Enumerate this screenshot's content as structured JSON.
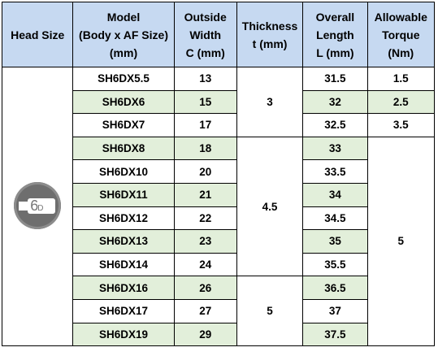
{
  "headers": {
    "head_size": "Head Size",
    "model": [
      "Model",
      "(Body x AF Size)",
      "(mm)"
    ],
    "width": [
      "Outside",
      "Width",
      "C (mm)"
    ],
    "thickness": [
      "Thickness",
      "t (mm)"
    ],
    "length": [
      "Overall",
      "Length",
      "L (mm)"
    ],
    "torque": [
      "Allowable",
      "Torque",
      "(Nm)"
    ]
  },
  "icon": {
    "name": "6d-head-icon",
    "text": "6",
    "subtext": "D"
  },
  "rows": [
    {
      "model": "SH6DX5.5",
      "width": "13",
      "length": "31.5"
    },
    {
      "model": "SH6DX6",
      "width": "15",
      "length": "32"
    },
    {
      "model": "SH6DX7",
      "width": "17",
      "length": "32.5"
    },
    {
      "model": "SH6DX8",
      "width": "18",
      "length": "33"
    },
    {
      "model": "SH6DX10",
      "width": "20",
      "length": "33.5"
    },
    {
      "model": "SH6DX11",
      "width": "21",
      "length": "34"
    },
    {
      "model": "SH6DX12",
      "width": "22",
      "length": "34.5"
    },
    {
      "model": "SH6DX13",
      "width": "23",
      "length": "35"
    },
    {
      "model": "SH6DX14",
      "width": "24",
      "length": "35.5"
    },
    {
      "model": "SH6DX16",
      "width": "26",
      "length": "36.5"
    },
    {
      "model": "SH6DX17",
      "width": "27",
      "length": "37"
    },
    {
      "model": "SH6DX19",
      "width": "29",
      "length": "37.5"
    }
  ],
  "thickness_groups": [
    {
      "value": "3",
      "rows": 3
    },
    {
      "value": "4.5",
      "rows": 6
    },
    {
      "value": "5",
      "rows": 3
    }
  ],
  "torque_values": {
    "row0": "1.5",
    "row1": "2.5",
    "row2": "3.5",
    "group": "5"
  },
  "colors": {
    "header_bg": "#c6d9f1",
    "alt_row_bg": "#e2efda",
    "border": "#000000"
  }
}
